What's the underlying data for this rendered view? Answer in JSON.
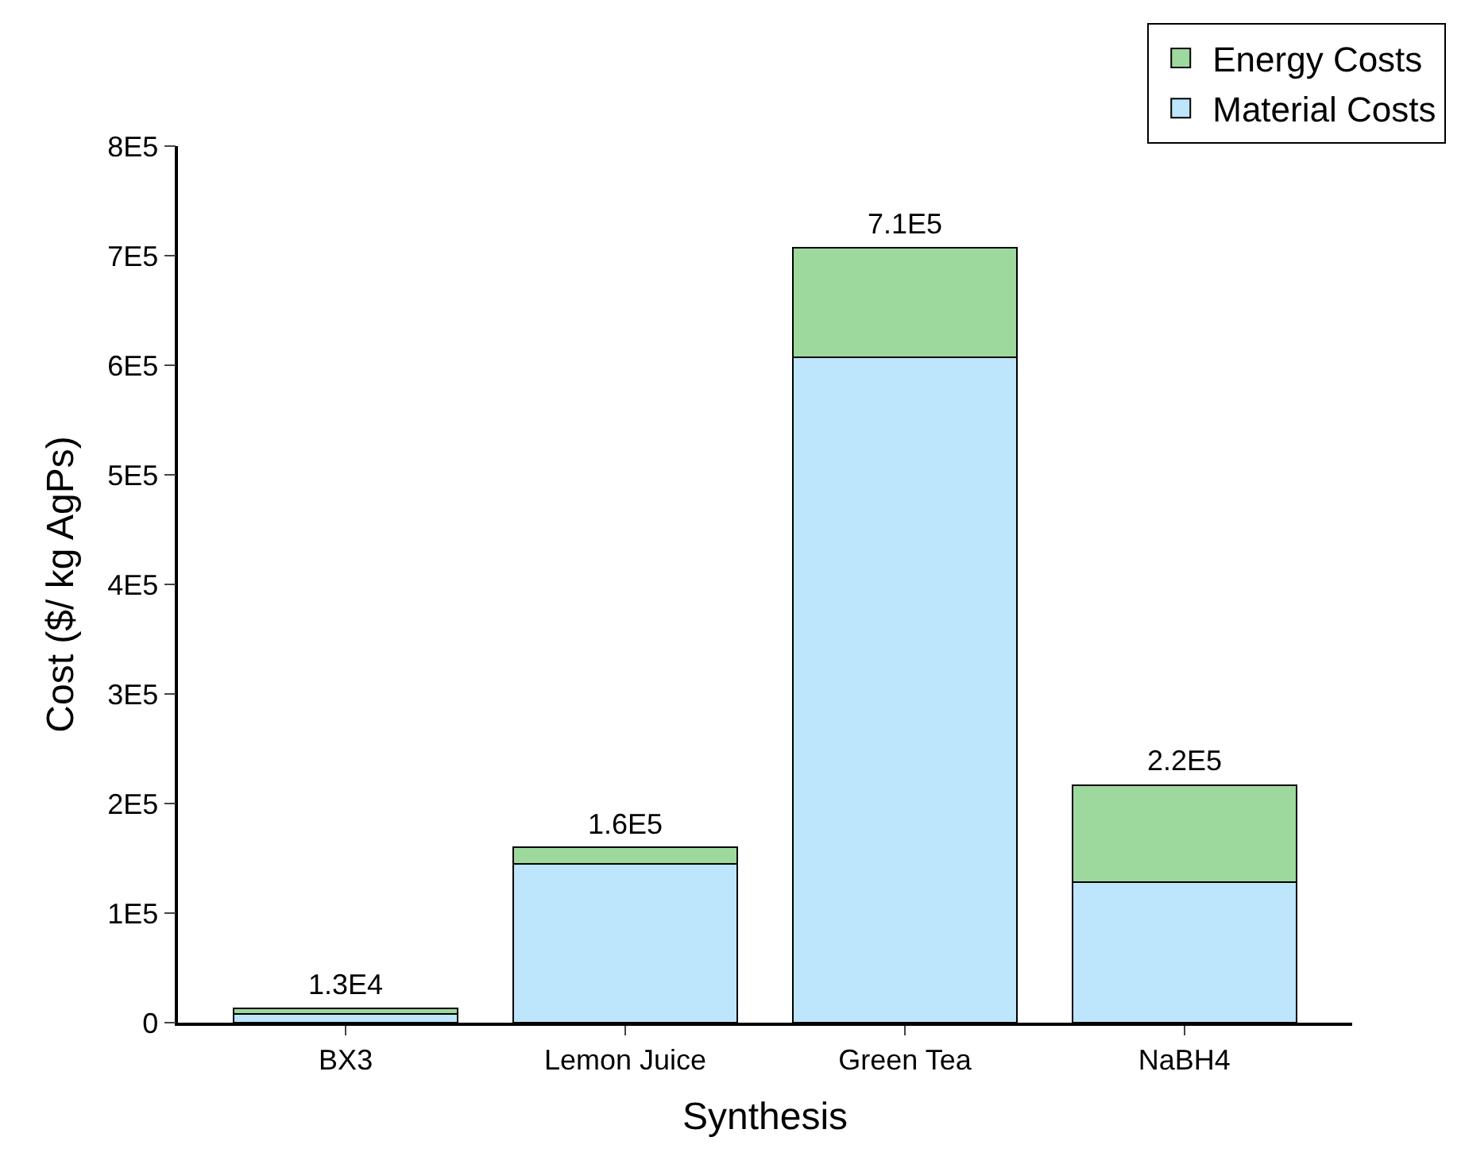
{
  "chart_data": {
    "type": "bar",
    "stacked": true,
    "xlabel": "Synthesis",
    "ylabel": "Cost ($/ kg AgPs)",
    "categories": [
      "BX3",
      "Lemon Juice",
      "Green Tea",
      "NaBH4"
    ],
    "series": [
      {
        "name": "Material Costs",
        "color": "#bde5fb",
        "values": [
          8000,
          145000,
          607000,
          128000
        ]
      },
      {
        "name": "Energy Costs",
        "color": "#9dd89d",
        "values": [
          5000,
          15000,
          100000,
          89000
        ]
      }
    ],
    "totals": [
      "1.3E4",
      "1.6E5",
      "7.1E5",
      "2.2E5"
    ],
    "ylim": [
      0,
      800000
    ],
    "yticks": [
      0,
      {
        "value": 100000,
        "label": "1E5"
      },
      {
        "value": 200000,
        "label": "2E5"
      },
      {
        "value": 300000,
        "label": "3E5"
      },
      {
        "value": 400000,
        "label": "4E5"
      },
      {
        "value": 500000,
        "label": "5E5"
      },
      {
        "value": 600000,
        "label": "6E5"
      },
      {
        "value": 700000,
        "label": "7E5"
      },
      {
        "value": 800000,
        "label": "8E5"
      }
    ],
    "grid": false,
    "legend": "top right"
  }
}
